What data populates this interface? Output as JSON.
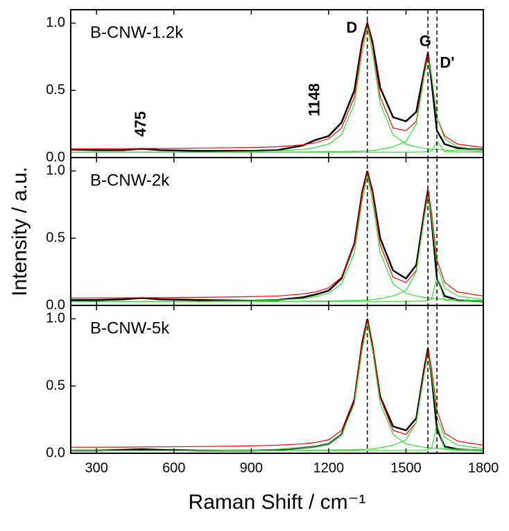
{
  "chart_data": [
    {
      "type": "line",
      "label": "B-CNW-1.2k",
      "x": [
        200,
        300,
        400,
        475,
        550,
        700,
        900,
        1000,
        1100,
        1148,
        1200,
        1250,
        1300,
        1330,
        1350,
        1370,
        1400,
        1450,
        1500,
        1540,
        1570,
        1585,
        1600,
        1620,
        1650,
        1700,
        1800
      ],
      "series": [
        {
          "color": "#000000",
          "values": [
            0.06,
            0.055,
            0.055,
            0.065,
            0.055,
            0.05,
            0.05,
            0.055,
            0.09,
            0.13,
            0.16,
            0.26,
            0.5,
            0.86,
            1.0,
            0.86,
            0.52,
            0.3,
            0.27,
            0.34,
            0.64,
            0.78,
            0.55,
            0.2,
            0.1,
            0.07,
            0.06
          ]
        },
        {
          "color": "#ff0000",
          "values": [
            0.065,
            0.065,
            0.066,
            0.067,
            0.068,
            0.07,
            0.075,
            0.08,
            0.095,
            0.11,
            0.14,
            0.22,
            0.45,
            0.83,
            1.0,
            0.83,
            0.45,
            0.22,
            0.2,
            0.27,
            0.62,
            0.78,
            0.6,
            0.3,
            0.16,
            0.1,
            0.075
          ]
        },
        {
          "color": "#33dd33",
          "values": [
            0.04,
            0.04,
            0.04,
            0.04,
            0.04,
            0.04,
            0.045,
            0.05,
            0.06,
            0.075,
            0.1,
            0.17,
            0.4,
            0.78,
            0.97,
            0.78,
            0.4,
            0.17,
            0.1,
            0.08,
            0.07,
            0.065,
            0.063,
            0.06,
            0.056,
            0.052,
            0.047
          ]
        },
        {
          "color": "#33dd33",
          "values": [
            0.04,
            0.04,
            0.04,
            0.04,
            0.04,
            0.04,
            0.04,
            0.04,
            0.042,
            0.043,
            0.044,
            0.045,
            0.047,
            0.049,
            0.05,
            0.053,
            0.06,
            0.08,
            0.12,
            0.25,
            0.6,
            0.74,
            0.6,
            0.3,
            0.14,
            0.08,
            0.055
          ]
        },
        {
          "color": "#33dd33",
          "values": [
            0.04,
            0.04,
            0.04,
            0.04,
            0.04,
            0.04,
            0.04,
            0.04,
            0.04,
            0.04,
            0.04,
            0.04,
            0.04,
            0.04,
            0.04,
            0.04,
            0.04,
            0.04,
            0.04,
            0.041,
            0.042,
            0.044,
            0.05,
            0.12,
            0.045,
            0.041,
            0.04
          ]
        }
      ],
      "vlines": [
        1350,
        1585,
        1620
      ],
      "annotations": [
        {
          "text": "D",
          "x": 1290,
          "y": 0.96
        },
        {
          "text": "G",
          "x": 1575,
          "y": 0.86
        },
        {
          "text": "D'",
          "x": 1660,
          "y": 0.7
        },
        {
          "text": "475",
          "x": 475,
          "y": 0.25,
          "rotate": -90
        },
        {
          "text": "1148",
          "x": 1148,
          "y": 0.43,
          "rotate": -90
        }
      ],
      "xlim": [
        200,
        1800
      ],
      "xticks": [
        300,
        600,
        900,
        1200,
        1500,
        1800
      ],
      "ylim": [
        0,
        1.1
      ],
      "yticks": [
        {
          "value": 0,
          "label": "0.0"
        },
        {
          "value": 0.5,
          "label": "0.5"
        },
        {
          "value": 1,
          "label": "1.0"
        }
      ]
    },
    {
      "type": "line",
      "label": "B-CNW-2k",
      "ylabel": "Intensity / a.u.",
      "x": [
        200,
        300,
        400,
        475,
        550,
        700,
        900,
        1000,
        1100,
        1148,
        1200,
        1250,
        1300,
        1330,
        1350,
        1370,
        1400,
        1450,
        1500,
        1540,
        1570,
        1585,
        1600,
        1620,
        1650,
        1700,
        1800
      ],
      "series": [
        {
          "color": "#000000",
          "values": [
            0.04,
            0.04,
            0.045,
            0.055,
            0.045,
            0.04,
            0.035,
            0.04,
            0.06,
            0.08,
            0.11,
            0.2,
            0.46,
            0.84,
            1.0,
            0.85,
            0.5,
            0.26,
            0.2,
            0.3,
            0.68,
            0.86,
            0.62,
            0.2,
            0.07,
            0.04,
            0.03
          ]
        },
        {
          "color": "#ff0000",
          "values": [
            0.055,
            0.055,
            0.056,
            0.057,
            0.058,
            0.06,
            0.065,
            0.07,
            0.085,
            0.1,
            0.13,
            0.21,
            0.45,
            0.83,
            1.0,
            0.83,
            0.45,
            0.21,
            0.17,
            0.26,
            0.66,
            0.86,
            0.68,
            0.34,
            0.17,
            0.1,
            0.07
          ]
        },
        {
          "color": "#33dd33",
          "values": [
            0.03,
            0.03,
            0.03,
            0.03,
            0.03,
            0.03,
            0.035,
            0.04,
            0.05,
            0.065,
            0.09,
            0.16,
            0.39,
            0.78,
            0.97,
            0.78,
            0.39,
            0.16,
            0.09,
            0.07,
            0.06,
            0.055,
            0.053,
            0.05,
            0.046,
            0.042,
            0.037
          ]
        },
        {
          "color": "#33dd33",
          "values": [
            0.03,
            0.03,
            0.03,
            0.03,
            0.03,
            0.03,
            0.03,
            0.03,
            0.032,
            0.033,
            0.034,
            0.035,
            0.037,
            0.039,
            0.04,
            0.043,
            0.05,
            0.07,
            0.11,
            0.25,
            0.64,
            0.81,
            0.64,
            0.3,
            0.13,
            0.07,
            0.045
          ]
        },
        {
          "color": "#33dd33",
          "values": [
            0.03,
            0.03,
            0.03,
            0.03,
            0.03,
            0.03,
            0.03,
            0.03,
            0.03,
            0.03,
            0.03,
            0.03,
            0.03,
            0.03,
            0.03,
            0.03,
            0.03,
            0.03,
            0.03,
            0.031,
            0.033,
            0.036,
            0.05,
            0.21,
            0.04,
            0.032,
            0.03
          ]
        }
      ],
      "vlines": [
        1350,
        1585,
        1620
      ],
      "xlim": [
        200,
        1800
      ],
      "xticks": [
        300,
        600,
        900,
        1200,
        1500,
        1800
      ],
      "ylim": [
        0,
        1.1
      ],
      "yticks": [
        {
          "value": 0,
          "label": "0.0"
        },
        {
          "value": 0.5,
          "label": "0.5"
        },
        {
          "value": 1,
          "label": "1.0"
        }
      ]
    },
    {
      "type": "line",
      "label": "B-CNW-5k",
      "xlabel": "Raman Shift / cm⁻¹",
      "x": [
        200,
        300,
        400,
        475,
        550,
        700,
        900,
        1000,
        1100,
        1148,
        1200,
        1250,
        1300,
        1330,
        1350,
        1370,
        1400,
        1450,
        1500,
        1540,
        1570,
        1585,
        1600,
        1620,
        1650,
        1700,
        1800
      ],
      "series": [
        {
          "color": "#000000",
          "values": [
            0.02,
            0.02,
            0.025,
            0.03,
            0.025,
            0.02,
            0.02,
            0.025,
            0.04,
            0.05,
            0.07,
            0.14,
            0.4,
            0.82,
            1.0,
            0.8,
            0.42,
            0.2,
            0.17,
            0.26,
            0.62,
            0.78,
            0.56,
            0.18,
            0.05,
            0.03,
            0.02
          ]
        },
        {
          "color": "#ff0000",
          "values": [
            0.045,
            0.045,
            0.046,
            0.047,
            0.048,
            0.05,
            0.055,
            0.06,
            0.07,
            0.08,
            0.1,
            0.17,
            0.41,
            0.82,
            1.0,
            0.82,
            0.41,
            0.17,
            0.14,
            0.23,
            0.6,
            0.78,
            0.62,
            0.32,
            0.15,
            0.09,
            0.06
          ]
        },
        {
          "color": "#33dd33",
          "values": [
            0.02,
            0.02,
            0.02,
            0.02,
            0.02,
            0.02,
            0.025,
            0.03,
            0.04,
            0.05,
            0.07,
            0.14,
            0.37,
            0.77,
            0.97,
            0.77,
            0.37,
            0.14,
            0.07,
            0.055,
            0.045,
            0.042,
            0.04,
            0.037,
            0.033,
            0.03,
            0.026
          ]
        },
        {
          "color": "#33dd33",
          "values": [
            0.02,
            0.02,
            0.02,
            0.02,
            0.02,
            0.02,
            0.02,
            0.02,
            0.022,
            0.023,
            0.024,
            0.025,
            0.027,
            0.029,
            0.03,
            0.033,
            0.04,
            0.06,
            0.1,
            0.23,
            0.58,
            0.74,
            0.58,
            0.27,
            0.12,
            0.06,
            0.035
          ]
        },
        {
          "color": "#33dd33",
          "values": [
            0.02,
            0.02,
            0.02,
            0.02,
            0.02,
            0.02,
            0.02,
            0.02,
            0.02,
            0.02,
            0.02,
            0.02,
            0.02,
            0.02,
            0.02,
            0.02,
            0.02,
            0.02,
            0.02,
            0.021,
            0.023,
            0.026,
            0.04,
            0.22,
            0.03,
            0.022,
            0.02
          ]
        }
      ],
      "vlines": [
        1350,
        1585,
        1620
      ],
      "xlim": [
        200,
        1800
      ],
      "xticks": [
        300,
        600,
        900,
        1200,
        1500,
        1800
      ],
      "ylim": [
        0,
        1.1
      ],
      "yticks": [
        {
          "value": 0,
          "label": "0.0"
        },
        {
          "value": 0.5,
          "label": "0.5"
        },
        {
          "value": 1,
          "label": "1.0"
        }
      ]
    }
  ]
}
